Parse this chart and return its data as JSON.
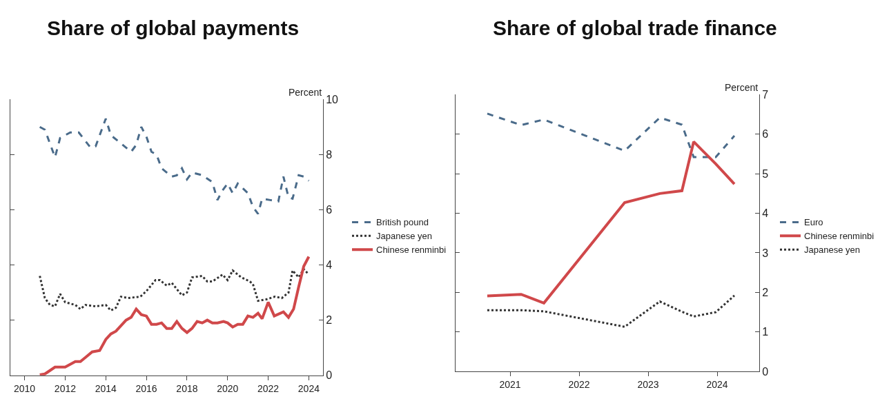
{
  "chart_data": [
    {
      "type": "line",
      "title": "Share of global payments",
      "ylabel": "Percent",
      "xlim": [
        2009.3,
        2024.7
      ],
      "xticks": [
        2010,
        2012,
        2014,
        2016,
        2018,
        2020,
        2022,
        2024
      ],
      "ylim": [
        0,
        10
      ],
      "yticks": [
        0,
        2,
        4,
        6,
        8,
        10
      ],
      "legend": "right",
      "series": [
        {
          "name": "British pound",
          "color": "#4a6b8a",
          "line_style": "dashed",
          "x": [
            2010.75,
            2011.0,
            2011.5,
            2011.75,
            2012.25,
            2012.67,
            2013.25,
            2013.5,
            2014.0,
            2014.25,
            2014.75,
            2015.25,
            2015.5,
            2015.75,
            2016.0,
            2016.25,
            2016.5,
            2016.75,
            2017.25,
            2017.5,
            2017.75,
            2018.0,
            2018.25,
            2018.75,
            2019.25,
            2019.5,
            2019.75,
            2020.0,
            2020.25,
            2020.5,
            2021.0,
            2021.25,
            2021.5,
            2021.7,
            2022.1,
            2022.5,
            2022.75,
            2023.0,
            2023.2,
            2023.5,
            2023.75,
            2024.0
          ],
          "values": [
            9.0,
            8.9,
            7.9,
            8.6,
            8.8,
            8.8,
            8.25,
            8.3,
            9.3,
            8.7,
            8.4,
            8.1,
            8.35,
            9.0,
            8.65,
            8.1,
            8.0,
            7.5,
            7.2,
            7.25,
            7.5,
            7.1,
            7.35,
            7.25,
            7.0,
            6.35,
            6.7,
            6.95,
            6.6,
            6.95,
            6.6,
            6.1,
            5.85,
            6.4,
            6.35,
            6.3,
            7.2,
            6.45,
            6.4,
            7.25,
            7.2,
            7.05
          ]
        },
        {
          "name": "Japanese yen",
          "color": "#333333",
          "line_style": "dotted",
          "x": [
            2010.75,
            2011.0,
            2011.25,
            2011.5,
            2011.75,
            2012.0,
            2012.5,
            2012.75,
            2013.0,
            2013.5,
            2014.0,
            2014.25,
            2014.5,
            2014.75,
            2015.1,
            2015.7,
            2016.0,
            2016.45,
            2016.67,
            2017.0,
            2017.25,
            2017.75,
            2018.0,
            2018.25,
            2018.75,
            2019.0,
            2019.25,
            2019.75,
            2020.0,
            2020.25,
            2020.67,
            2021.1,
            2021.25,
            2021.5,
            2021.9,
            2022.33,
            2022.67,
            2023.0,
            2023.2,
            2023.5,
            2023.75,
            2024.0
          ],
          "values": [
            3.6,
            2.8,
            2.55,
            2.5,
            2.95,
            2.65,
            2.55,
            2.4,
            2.55,
            2.5,
            2.55,
            2.35,
            2.45,
            2.85,
            2.8,
            2.85,
            3.05,
            3.45,
            3.45,
            3.25,
            3.35,
            2.9,
            3.0,
            3.55,
            3.6,
            3.4,
            3.4,
            3.65,
            3.45,
            3.8,
            3.55,
            3.4,
            3.3,
            2.7,
            2.75,
            2.85,
            2.8,
            3.0,
            3.8,
            3.55,
            3.85,
            3.65
          ]
        },
        {
          "name": "Chinese renminbi",
          "color": "#d0484a",
          "line_style": "solid",
          "x": [
            2010.75,
            2011.0,
            2011.5,
            2012.0,
            2012.5,
            2012.75,
            2013.0,
            2013.33,
            2013.7,
            2014.0,
            2014.25,
            2014.5,
            2015.0,
            2015.25,
            2015.5,
            2015.75,
            2016.0,
            2016.25,
            2016.5,
            2016.75,
            2017.0,
            2017.25,
            2017.5,
            2017.75,
            2018.0,
            2018.25,
            2018.5,
            2018.75,
            2019.0,
            2019.25,
            2019.5,
            2019.8,
            2020.0,
            2020.25,
            2020.5,
            2020.75,
            2021.0,
            2021.25,
            2021.5,
            2021.7,
            2022.0,
            2022.3,
            2022.75,
            2023.0,
            2023.25,
            2023.5,
            2023.75,
            2024.0
          ],
          "values": [
            0.02,
            0.05,
            0.3,
            0.3,
            0.5,
            0.5,
            0.65,
            0.85,
            0.9,
            1.3,
            1.5,
            1.6,
            2.0,
            2.1,
            2.4,
            2.2,
            2.15,
            1.85,
            1.85,
            1.9,
            1.7,
            1.7,
            1.95,
            1.7,
            1.55,
            1.7,
            1.95,
            1.9,
            2.0,
            1.9,
            1.9,
            1.95,
            1.9,
            1.75,
            1.85,
            1.85,
            2.15,
            2.1,
            2.25,
            2.05,
            2.65,
            2.15,
            2.3,
            2.1,
            2.4,
            3.2,
            3.95,
            4.3
          ]
        }
      ]
    },
    {
      "type": "line",
      "title": "Share of global trade finance",
      "ylabel": "Percent",
      "xlim": [
        2020.21,
        2024.61
      ],
      "xticks": [
        2021,
        2022,
        2023,
        2024
      ],
      "ylim": [
        0,
        7
      ],
      "yticks": [
        0,
        1,
        2,
        3,
        4,
        5,
        6,
        7
      ],
      "legend": "right",
      "series": [
        {
          "name": "Euro",
          "color": "#4a6b8a",
          "line_style": "dashed",
          "x": [
            2020.67,
            2021.16,
            2021.49,
            2022.66,
            2023.17,
            2023.49,
            2023.66,
            2023.98,
            2024.25
          ],
          "values": [
            6.52,
            6.23,
            6.37,
            5.58,
            6.42,
            6.24,
            5.42,
            5.42,
            5.96
          ]
        },
        {
          "name": "Chinese renminbi",
          "color": "#d0484a",
          "line_style": "solid",
          "x": [
            2020.67,
            2021.16,
            2021.49,
            2022.66,
            2023.17,
            2023.49,
            2023.66,
            2023.98,
            2024.25
          ],
          "values": [
            1.91,
            1.95,
            1.73,
            4.27,
            4.5,
            4.57,
            5.81,
            5.25,
            4.74
          ]
        },
        {
          "name": "Japanese yen",
          "color": "#333333",
          "line_style": "dotted",
          "x": [
            2020.67,
            2021.16,
            2021.49,
            2022.66,
            2023.17,
            2023.49,
            2023.66,
            2023.98,
            2024.25
          ],
          "values": [
            1.55,
            1.55,
            1.52,
            1.13,
            1.77,
            1.51,
            1.39,
            1.5,
            1.92
          ]
        }
      ]
    }
  ]
}
